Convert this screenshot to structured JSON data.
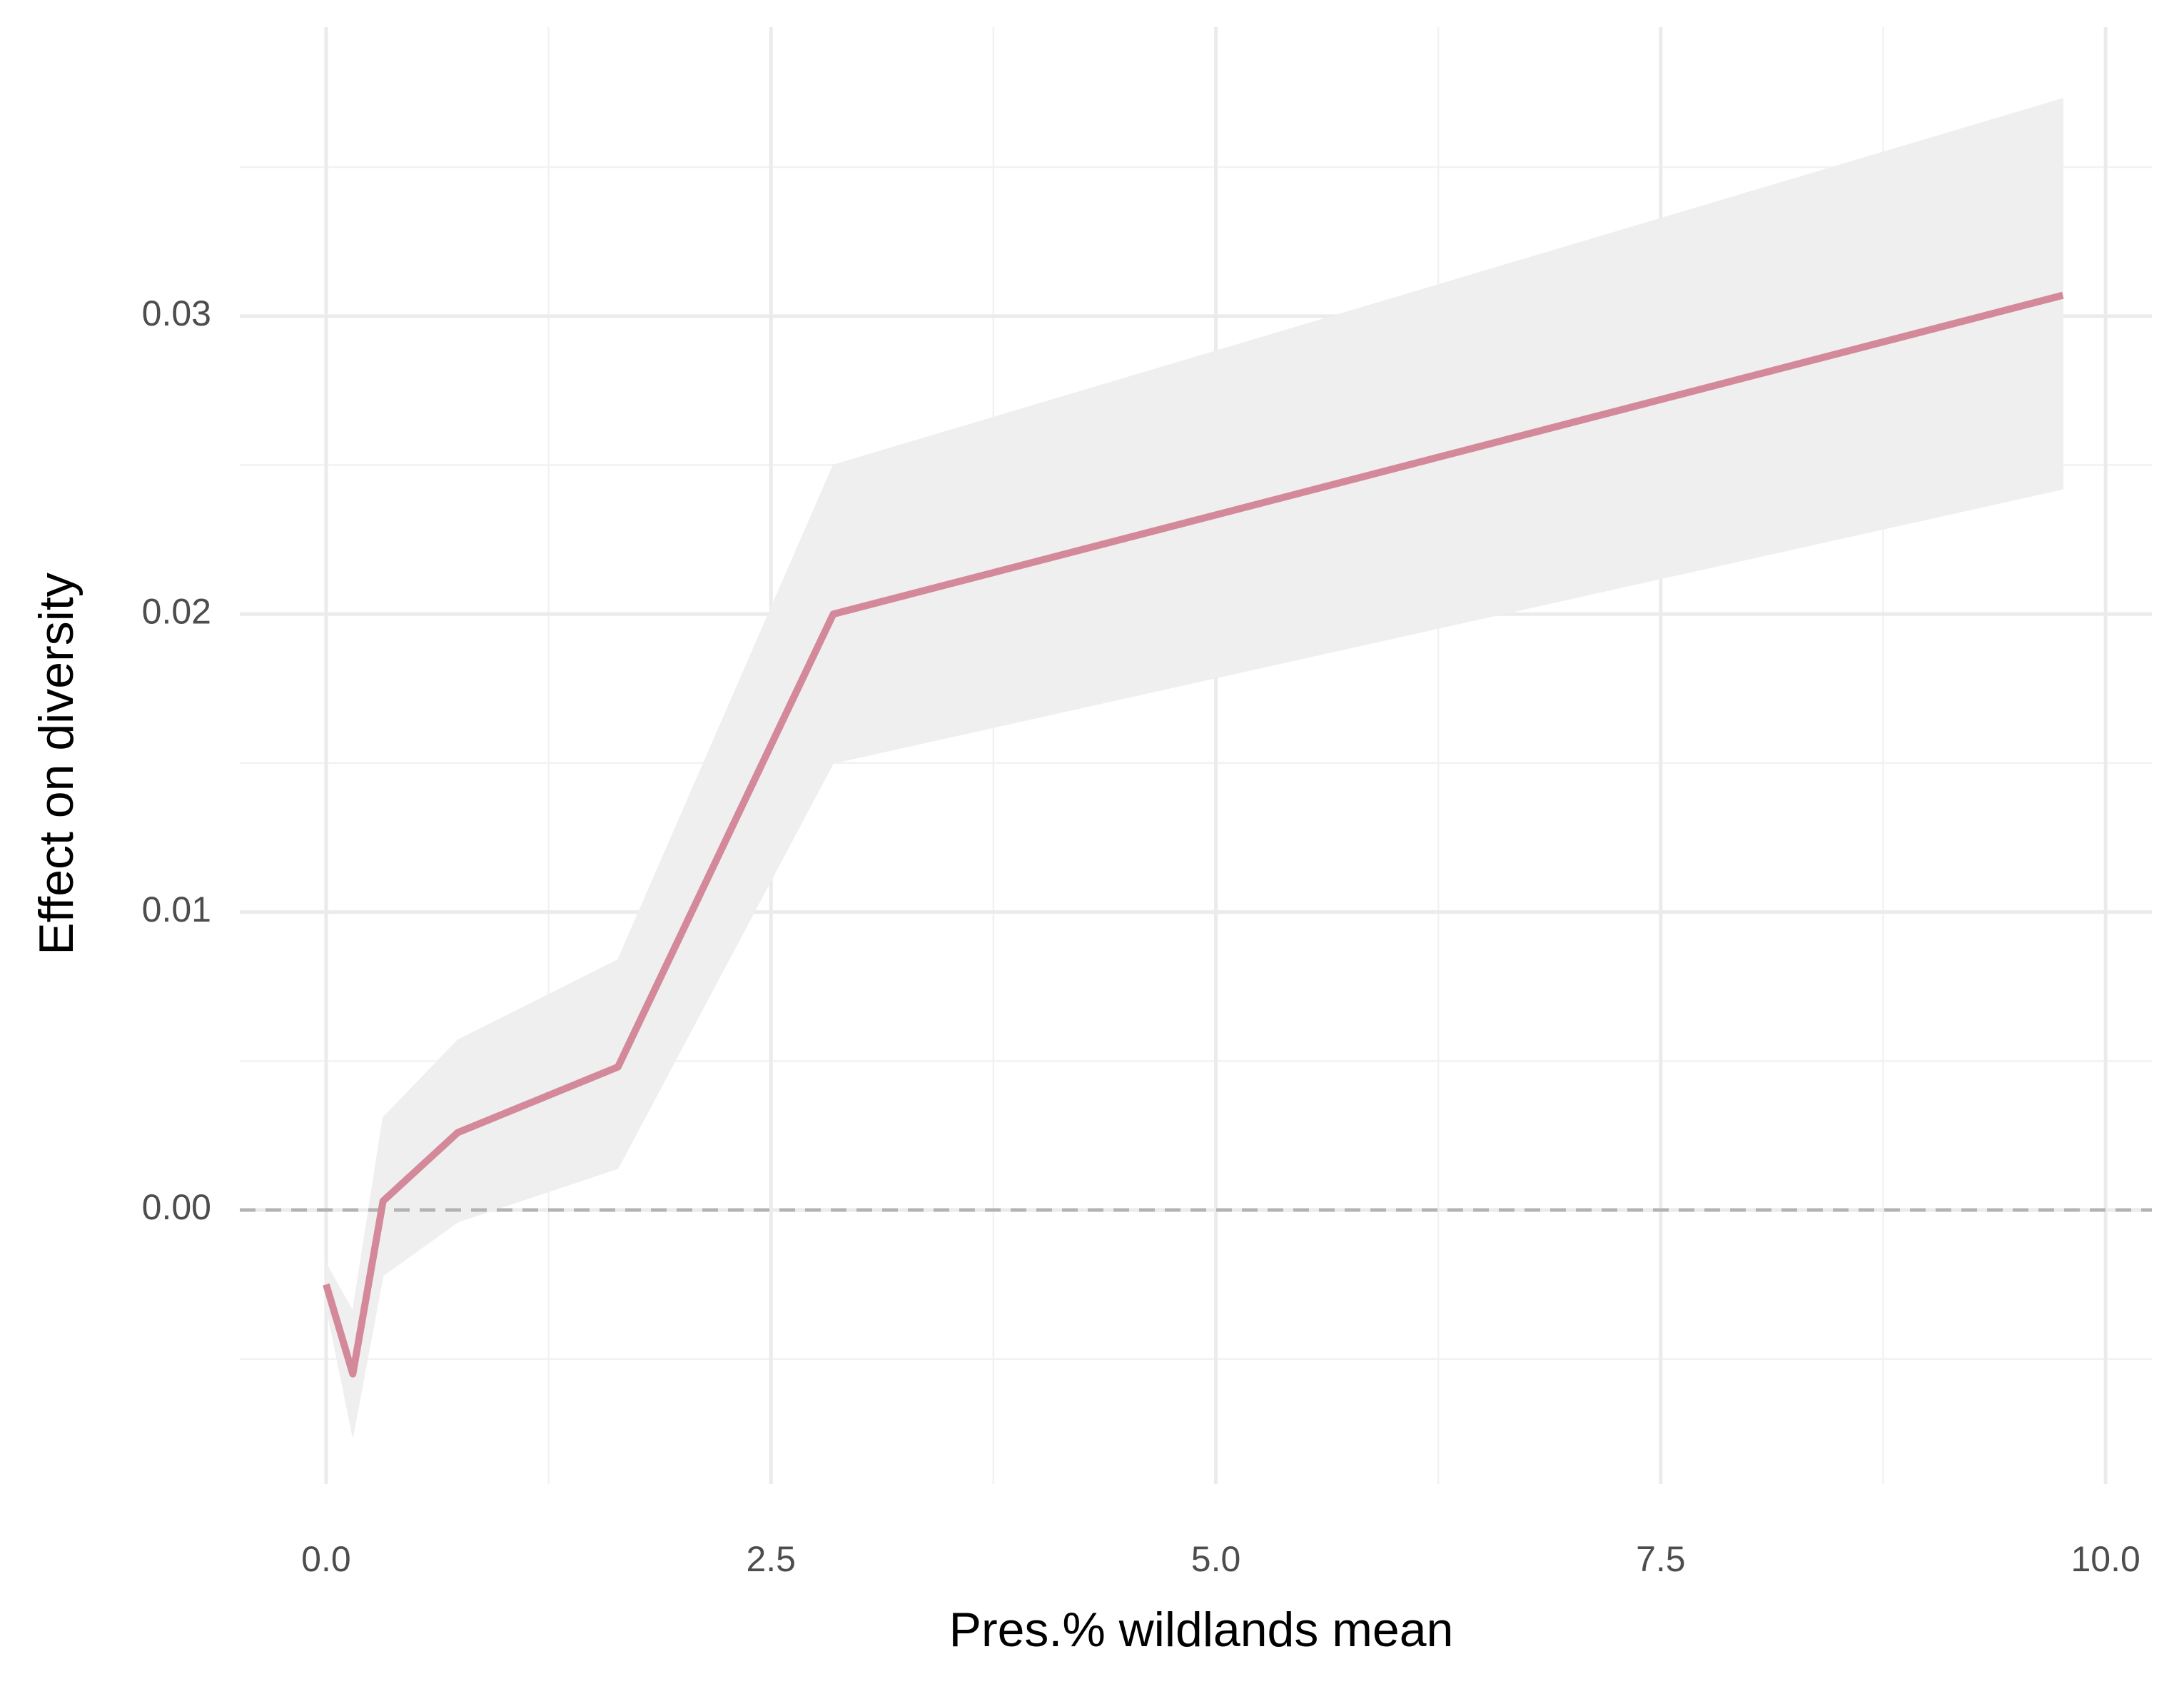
{
  "chart_data": {
    "type": "line",
    "x_label": "Pres.% wildlands mean",
    "y_label": "Effect on diversity",
    "x": [
      0.0,
      0.15,
      0.32,
      0.74,
      1.64,
      2.85,
      9.76
    ],
    "values": [
      -0.0025,
      -0.0055,
      0.0003,
      0.0026,
      0.0048,
      0.02,
      0.0307
    ],
    "lower": [
      -0.0032,
      -0.0076,
      -0.0022,
      -0.0004,
      0.0014,
      0.015,
      0.0242
    ],
    "upper": [
      -0.0018,
      -0.0034,
      0.0031,
      0.0057,
      0.0084,
      0.025,
      0.0373
    ],
    "color": "#d4899a",
    "band_color": "#efefef",
    "xlim": [
      -0.485,
      10.26
    ],
    "ylim": [
      -0.0092,
      0.0397
    ],
    "xticks": [
      {
        "value": 0,
        "label": "0.0"
      },
      {
        "value": 2.5,
        "label": "2.5"
      },
      {
        "value": 5,
        "label": "5.0"
      },
      {
        "value": 7.5,
        "label": "7.5"
      },
      {
        "value": 10,
        "label": "10.0"
      }
    ],
    "yticks": [
      {
        "value": 0,
        "label": "0.00"
      },
      {
        "value": 0.01,
        "label": "0.01"
      },
      {
        "value": 0.02,
        "label": "0.02"
      },
      {
        "value": 0.03,
        "label": "0.03"
      }
    ],
    "hline": 0,
    "grid": true
  }
}
